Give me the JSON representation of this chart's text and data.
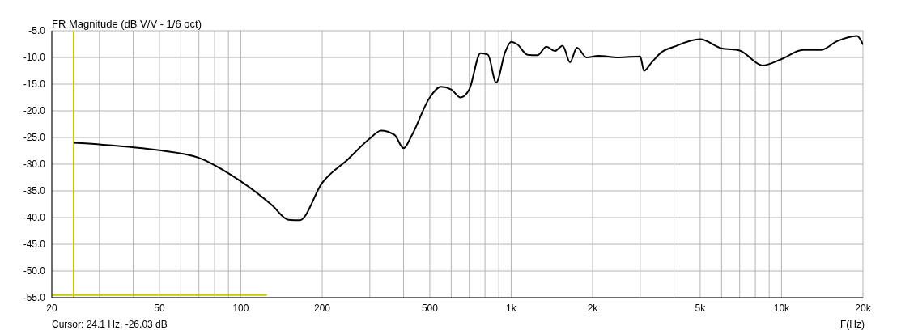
{
  "chart_data": {
    "type": "line",
    "title": "FR Magnitude (dB V/V - 1/6 oct)",
    "xlabel": "F(Hz)",
    "annotations": [
      "Cursor: 24.1 Hz, -26.03 dB"
    ],
    "log": "x",
    "grid": true,
    "marker": "none",
    "line_style": "solid",
    "xlim": [
      20,
      20000
    ],
    "ylim": [
      -55,
      -5
    ],
    "xticks": [
      20,
      {
        "value": 30,
        "label": null
      },
      {
        "value": 40,
        "label": null
      },
      50,
      {
        "value": 60,
        "label": null
      },
      {
        "value": 70,
        "label": null
      },
      {
        "value": 80,
        "label": null
      },
      {
        "value": 90,
        "label": null
      },
      100,
      200,
      {
        "value": 300,
        "label": null
      },
      {
        "value": 400,
        "label": null
      },
      500,
      {
        "value": 600,
        "label": null
      },
      {
        "value": 700,
        "label": null
      },
      {
        "value": 800,
        "label": null
      },
      {
        "value": 900,
        "label": null
      },
      {
        "value": 1000,
        "label": "1k"
      },
      {
        "value": 2000,
        "label": "2k"
      },
      {
        "value": 3000,
        "label": null
      },
      {
        "value": 4000,
        "label": null
      },
      {
        "value": 5000,
        "label": "5k"
      },
      {
        "value": 6000,
        "label": null
      },
      {
        "value": 7000,
        "label": null
      },
      {
        "value": 8000,
        "label": null
      },
      {
        "value": 9000,
        "label": null
      },
      {
        "value": 10000,
        "label": "10k"
      },
      {
        "value": 20000,
        "label": "20k"
      }
    ],
    "yticks": [
      {
        "value": -5,
        "label": "-5.0"
      },
      {
        "value": -10,
        "label": "-10.0"
      },
      {
        "value": -15,
        "label": "-15.0"
      },
      {
        "value": -20,
        "label": "-20.0"
      },
      {
        "value": -25,
        "label": "-25.0"
      },
      {
        "value": -30,
        "label": "-30.0"
      },
      {
        "value": -35,
        "label": "-35.0"
      },
      {
        "value": -40,
        "label": "-40.0"
      },
      {
        "value": -45,
        "label": "-45.0"
      },
      {
        "value": -50,
        "label": "-50.0"
      },
      {
        "value": -55,
        "label": "-55.0"
      }
    ],
    "ref_lines": [
      {
        "axis": "x",
        "value": 24.1,
        "color": "#c8c800"
      }
    ],
    "series": [
      {
        "color": "#000000",
        "x": [
          24.1,
          30,
          50,
          70,
          100,
          130,
          150,
          165,
          200,
          250,
          300,
          330,
          370,
          400,
          430,
          500,
          550,
          600,
          650,
          700,
          770,
          820,
          880,
          950,
          1000,
          1050,
          1150,
          1250,
          1350,
          1450,
          1550,
          1650,
          1750,
          1900,
          2100,
          2500,
          3000,
          3100,
          3300,
          3600,
          4000,
          5000,
          6000,
          7000,
          8500,
          10000,
          12000,
          14000,
          16000,
          19000,
          20000
        ],
        "values": [
          -26.0,
          -26.3,
          -27.4,
          -28.8,
          -33.2,
          -37.6,
          -40.4,
          -40.5,
          -33.5,
          -29.0,
          -25.2,
          -23.7,
          -24.5,
          -27.0,
          -24.5,
          -17.5,
          -15.5,
          -16.0,
          -17.5,
          -16.0,
          -9.2,
          -9.5,
          -14.7,
          -9.0,
          -7.1,
          -7.5,
          -9.5,
          -9.6,
          -8.0,
          -8.8,
          -7.8,
          -10.9,
          -8.2,
          -10.0,
          -9.7,
          -10.0,
          -9.8,
          -12.5,
          -11.0,
          -9.0,
          -8.0,
          -6.6,
          -8.3,
          -8.7,
          -11.5,
          -10.3,
          -8.6,
          -8.6,
          -7.0,
          -6.0,
          -7.6
        ]
      },
      {
        "type": "line",
        "color": "#c8c800",
        "x": [
          20,
          125
        ],
        "values": [
          -54.5,
          -54.5
        ]
      }
    ]
  }
}
